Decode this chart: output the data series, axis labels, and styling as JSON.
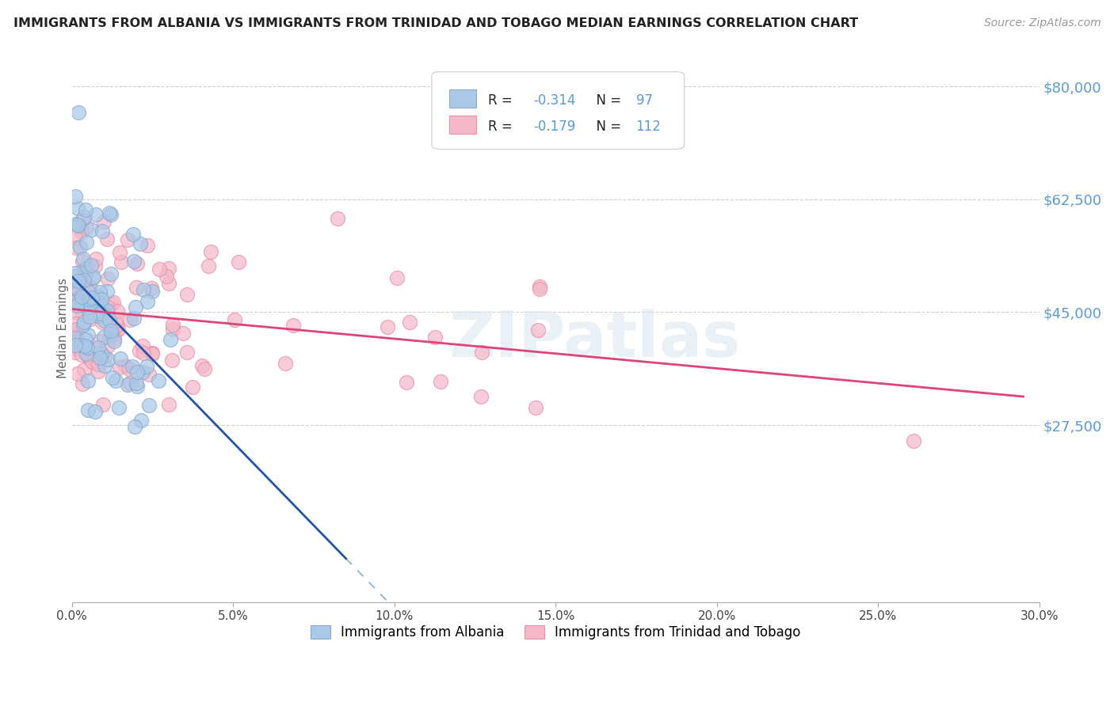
{
  "title": "IMMIGRANTS FROM ALBANIA VS IMMIGRANTS FROM TRINIDAD AND TOBAGO MEDIAN EARNINGS CORRELATION CHART",
  "source": "Source: ZipAtlas.com",
  "ylabel": "Median Earnings",
  "ylim": [
    0,
    85000
  ],
  "xlim": [
    0.0,
    0.3
  ],
  "background_color": "#ffffff",
  "grid_color": "#d0d0d0",
  "watermark_text": "ZIPatlas",
  "albania_color": "#aac8e8",
  "albania_edge": "#88aacc",
  "trinidad_color": "#f4b8c8",
  "trinidad_edge": "#e890a8",
  "albania_line_color": "#2255aa",
  "albania_line_dashed_color": "#99bbdd",
  "trinidad_line_color": "#dd4477",
  "legend_albania_R": "-0.314",
  "legend_albania_N": "97",
  "legend_trinidad_R": "-0.179",
  "legend_trinidad_N": "112",
  "ytick_vals": [
    27500,
    45000,
    62500,
    80000
  ],
  "ytick_labels": [
    "$27,500",
    "$45,000",
    "$62,500",
    "$80,000"
  ],
  "xtick_vals": [
    0.0,
    0.05,
    0.1,
    0.15,
    0.2,
    0.25,
    0.3
  ],
  "xtick_labels": [
    "0.0%",
    "5.0%",
    "10.0%",
    "15.0%",
    "20.0%",
    "25.0%",
    "30.0%"
  ]
}
